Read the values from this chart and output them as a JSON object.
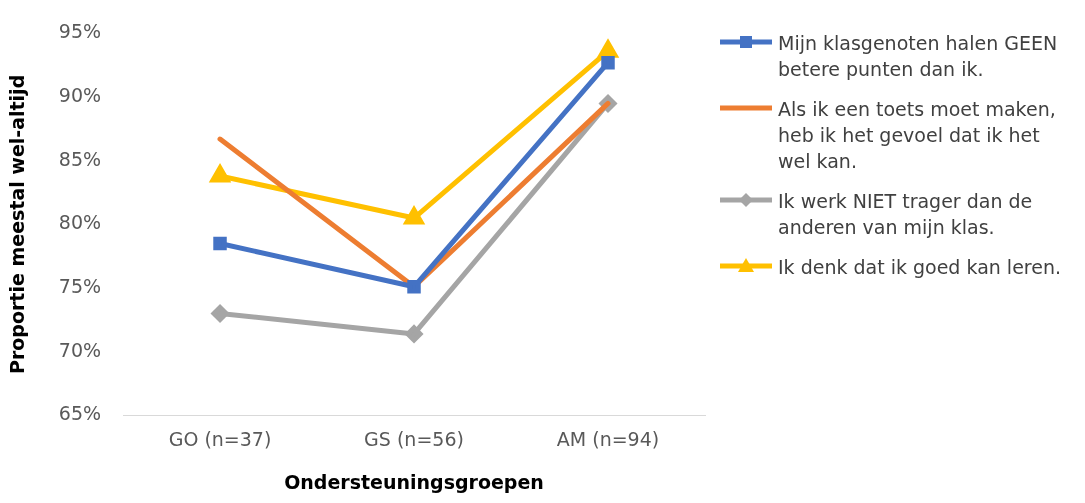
{
  "chart_data": {
    "type": "line",
    "xlabel": "Ondersteuningsgroepen",
    "ylabel": "Proportie meestal wel-altijd",
    "categories": [
      "GO (n=37)",
      "GS (n=56)",
      "AM (n=94)"
    ],
    "series": [
      {
        "name": "Mijn klasgenoten halen GEEN betere punten dan ik.",
        "color": "#4472c4",
        "marker": "square",
        "values": [
          78.5,
          75.1,
          92.7
        ]
      },
      {
        "name": "Als ik een toets moet maken, heb ik het gevoel dat ik het wel kan.",
        "color": "#ed7d31",
        "marker": "none",
        "values": [
          86.7,
          75.1,
          89.5
        ]
      },
      {
        "name": "Ik werk NIET trager dan de anderen van mijn klas.",
        "color": "#a5a5a5",
        "marker": "diamond",
        "values": [
          73.0,
          71.4,
          89.5
        ]
      },
      {
        "name": "Ik denk dat ik goed kan leren.",
        "color": "#ffc000",
        "marker": "triangle",
        "values": [
          83.8,
          80.5,
          93.6
        ]
      }
    ],
    "ylim": [
      65,
      95
    ],
    "yticks": [
      {
        "value": 65,
        "label": "65%"
      },
      {
        "value": 70,
        "label": "70%"
      },
      {
        "value": 75,
        "label": "75%"
      },
      {
        "value": 80,
        "label": "80%"
      },
      {
        "value": 85,
        "label": "85%"
      },
      {
        "value": 90,
        "label": "90%"
      },
      {
        "value": 95,
        "label": "95%"
      }
    ],
    "grid": false,
    "legend": "right",
    "line_style": "solid"
  }
}
